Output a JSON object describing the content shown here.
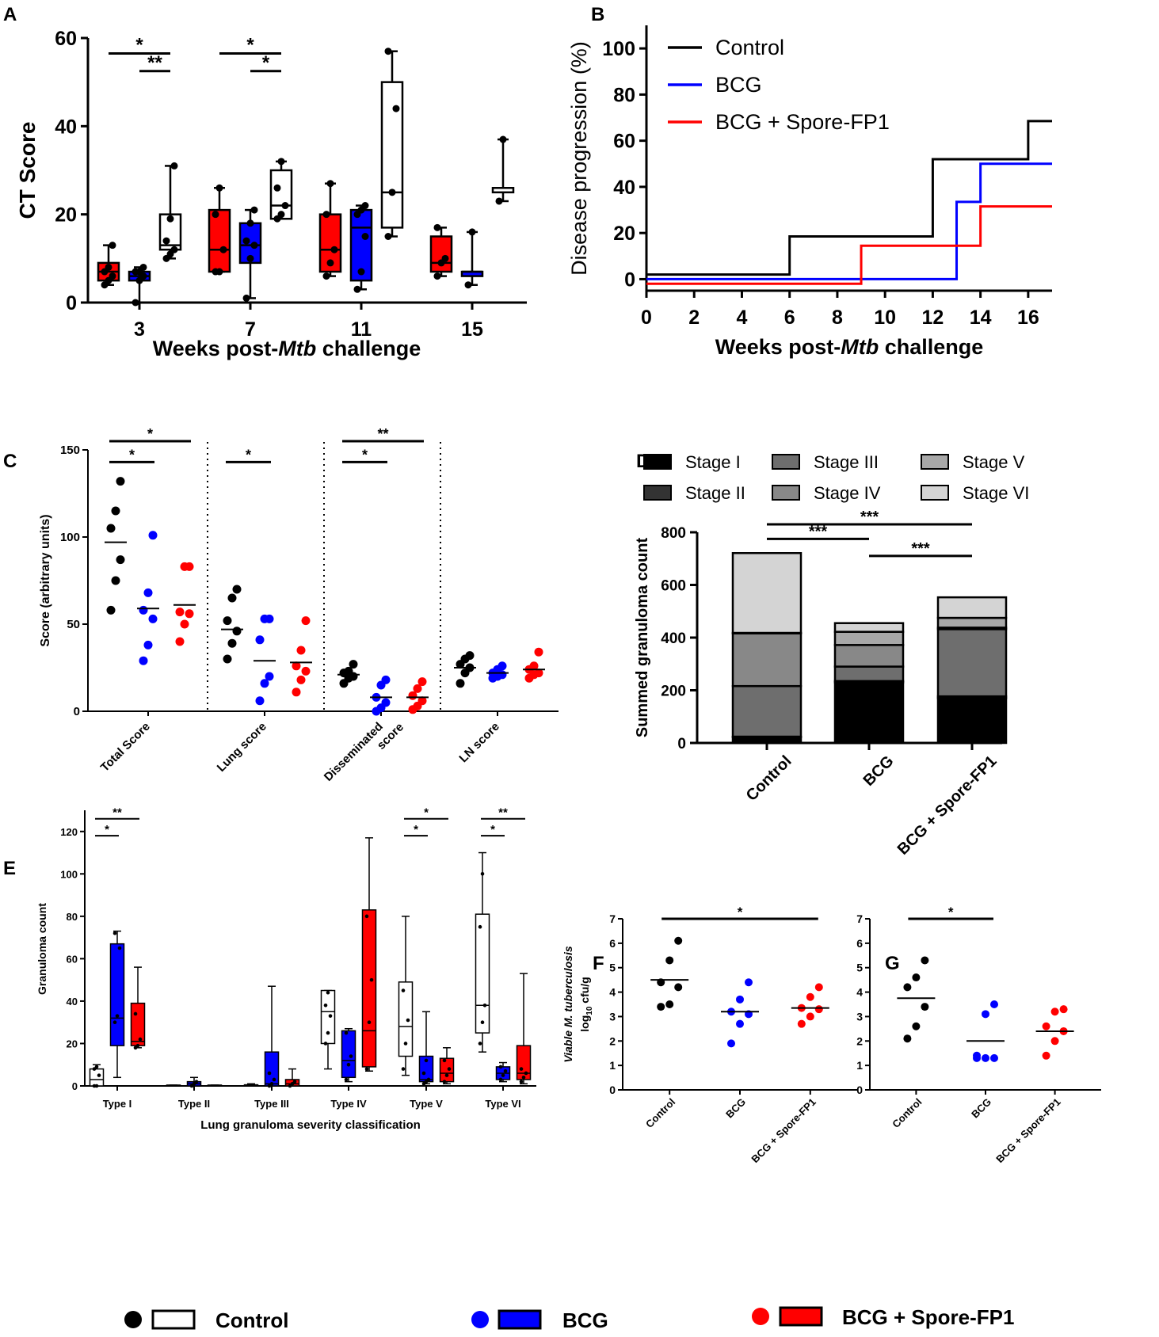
{
  "labels": {
    "A": "A",
    "B": "B",
    "C": "C",
    "D": "D",
    "E": "E",
    "F": "F",
    "G": "G"
  },
  "colors": {
    "control": "#000000",
    "bcg": "#0000ff",
    "spore": "#ff0000",
    "stage1": "#000000",
    "stage2": "#333333",
    "stage3": "#6e6e6e",
    "stage4": "#888888",
    "stage5": "#a8a8a8",
    "stage6": "#d4d4d4"
  },
  "legend": {
    "control": "Control",
    "bcg": "BCG",
    "spore": "BCG + Spore-FP1"
  },
  "chart_data": [
    {
      "panel": "A",
      "type": "box",
      "ylabel": "CT Score",
      "xlabel_pre": "Weeks post-",
      "xlabel_it": "Mtb",
      "xlabel_post": " challenge",
      "ylim": [
        0,
        60
      ],
      "yticks": [
        0,
        20,
        40,
        60
      ],
      "categories": [
        "3",
        "7",
        "11",
        "15"
      ],
      "boxes": [
        {
          "week": "3",
          "group": "spore",
          "min": 4,
          "q1": 5,
          "med": 7,
          "q3": 9,
          "max": 13,
          "pts": [
            4,
            5,
            6,
            7,
            8,
            13
          ]
        },
        {
          "week": "3",
          "group": "bcg",
          "min": 0,
          "q1": 5,
          "med": 6,
          "q3": 7,
          "max": 8,
          "pts": [
            0,
            5,
            6,
            7,
            7,
            8
          ]
        },
        {
          "week": "3",
          "group": "control",
          "min": 10,
          "q1": 12,
          "med": 13,
          "q3": 20,
          "max": 31,
          "pts": [
            10,
            11,
            12,
            14,
            19,
            31
          ]
        },
        {
          "week": "7",
          "group": "spore",
          "min": 7,
          "q1": 7,
          "med": 12,
          "q3": 21,
          "max": 26,
          "pts": [
            7,
            7,
            12,
            20,
            26
          ]
        },
        {
          "week": "7",
          "group": "bcg",
          "min": 1,
          "q1": 9,
          "med": 13,
          "q3": 18,
          "max": 21,
          "pts": [
            1,
            10,
            13,
            14,
            18,
            21
          ]
        },
        {
          "week": "7",
          "group": "control",
          "min": 19,
          "q1": 19,
          "med": 22,
          "q3": 30,
          "max": 32,
          "pts": [
            19,
            20,
            22,
            26,
            32
          ]
        },
        {
          "week": "11",
          "group": "spore",
          "min": 6,
          "q1": 7,
          "med": 12,
          "q3": 20,
          "max": 27,
          "pts": [
            6,
            9,
            12,
            20,
            27
          ]
        },
        {
          "week": "11",
          "group": "bcg",
          "min": 3,
          "q1": 5,
          "med": 17,
          "q3": 21,
          "max": 22,
          "pts": [
            3,
            7,
            15,
            20,
            21,
            22
          ]
        },
        {
          "week": "11",
          "group": "control",
          "min": 15,
          "q1": 17,
          "med": 25,
          "q3": 50,
          "max": 57,
          "pts": [
            15,
            25,
            44,
            57
          ]
        },
        {
          "week": "15",
          "group": "spore",
          "min": 6,
          "q1": 7,
          "med": 9,
          "q3": 15,
          "max": 17,
          "pts": [
            6,
            9,
            10,
            17
          ]
        },
        {
          "week": "15",
          "group": "bcg",
          "min": 4,
          "q1": 6,
          "med": 7,
          "q3": 7,
          "max": 16,
          "pts": [
            4,
            16
          ]
        },
        {
          "week": "15",
          "group": "control",
          "min": 23,
          "q1": 25,
          "med": 26,
          "q3": 26,
          "max": 37,
          "pts": [
            23,
            37
          ]
        }
      ],
      "sig": [
        {
          "label": "*",
          "from": "3-spore",
          "to": "3-control",
          "y": 56.5
        },
        {
          "label": "**",
          "from": "3-bcg",
          "to": "3-control",
          "y": 52.5
        },
        {
          "label": "*",
          "from": "7-spore",
          "to": "7-control",
          "y": 56.5
        },
        {
          "label": "*",
          "from": "7-bcg",
          "to": "7-control",
          "y": 52.5
        }
      ]
    },
    {
      "panel": "B",
      "type": "line",
      "ylabel": "Disease progression (%)",
      "xlabel_pre": "Weeks post-",
      "xlabel_it": "Mtb",
      "xlabel_post": " challenge",
      "xlim": [
        0,
        17
      ],
      "ylim": [
        -5,
        110
      ],
      "xticks": [
        0,
        2,
        4,
        6,
        8,
        10,
        12,
        14,
        16
      ],
      "yticks": [
        0,
        20,
        40,
        60,
        80,
        100
      ],
      "series": [
        {
          "name": "Control",
          "group": "control",
          "steps": [
            [
              0,
              2
            ],
            [
              6,
              2
            ],
            [
              6,
              18.5
            ],
            [
              12,
              18.5
            ],
            [
              12,
              52
            ],
            [
              16,
              52
            ],
            [
              16,
              68.5
            ],
            [
              17,
              68.5
            ]
          ]
        },
        {
          "name": "BCG",
          "group": "bcg",
          "steps": [
            [
              0,
              0
            ],
            [
              13,
              0
            ],
            [
              13,
              33.5
            ],
            [
              14,
              33.5
            ],
            [
              14,
              50
            ],
            [
              17,
              50
            ]
          ]
        },
        {
          "name": "BCG + Spore-FP1",
          "group": "spore",
          "steps": [
            [
              0,
              -2
            ],
            [
              9,
              -2
            ],
            [
              9,
              14.5
            ],
            [
              14,
              14.5
            ],
            [
              14,
              31.5
            ],
            [
              17,
              31.5
            ]
          ]
        }
      ]
    },
    {
      "panel": "C",
      "type": "scatter",
      "ylabel": "Score  (arbitrary units)",
      "ylim": [
        0,
        150
      ],
      "yticks": [
        0,
        50,
        100,
        150
      ],
      "categories": [
        "Total Score",
        "Lung score",
        "Disseminated score",
        "LN score"
      ],
      "cat_label_lines": [
        [
          "Total Score"
        ],
        [
          "Lung score"
        ],
        [
          "Disseminated",
          "score"
        ],
        [
          "LN score"
        ]
      ],
      "series": [
        {
          "group": "control",
          "points": [
            [
              58,
              75,
              87,
              105,
              115,
              132
            ],
            [
              30,
              39,
              46,
              52,
              65,
              70
            ],
            [
              16,
              19,
              20,
              22,
              23,
              27
            ],
            [
              16,
              22,
              25,
              27,
              30,
              32
            ]
          ],
          "means": [
            97,
            47,
            21,
            25
          ]
        },
        {
          "group": "bcg",
          "points": [
            [
              29,
              38,
              53,
              58,
              68,
              101
            ],
            [
              6,
              16,
              20,
              41,
              53,
              53
            ],
            [
              0,
              2,
              5,
              8,
              15,
              18
            ],
            [
              19,
              20,
              21,
              22,
              24,
              26
            ]
          ],
          "means": [
            59,
            29,
            8,
            22
          ]
        },
        {
          "group": "spore",
          "points": [
            [
              40,
              50,
              56,
              57,
              83,
              83
            ],
            [
              11,
              18,
              23,
              26,
              35,
              52
            ],
            [
              1,
              3,
              6,
              9,
              13,
              17
            ],
            [
              19,
              21,
              22,
              24,
              26,
              34
            ]
          ],
          "means": [
            61,
            28,
            8,
            24
          ]
        }
      ],
      "sig": [
        {
          "label": "*",
          "cat": 0,
          "from": 0,
          "to": 2,
          "y": 155
        },
        {
          "label": "*",
          "cat": 0,
          "from": 0,
          "to": 1,
          "y": 143
        },
        {
          "label": "*",
          "cat": 1,
          "from": 0,
          "to": 1,
          "y": 143
        },
        {
          "label": "**",
          "cat": 2,
          "from": 0,
          "to": 2,
          "y": 155
        },
        {
          "label": "*",
          "cat": 2,
          "from": 0,
          "to": 1,
          "y": 143
        }
      ]
    },
    {
      "panel": "D",
      "type": "stacked-bar",
      "ylabel": "Summed granuloma count",
      "ylim": [
        0,
        800
      ],
      "yticks": [
        0,
        200,
        400,
        600,
        800
      ],
      "categories": [
        "Control",
        "BCG",
        "BCG + Spore-FP1"
      ],
      "stages": [
        "Stage I",
        "Stage II",
        "Stage III",
        "Stage IV",
        "Stage V",
        "Stage VI"
      ],
      "stage_values": [
        [
          22,
          2,
          192,
          200,
          2,
          303
        ],
        [
          230,
          5,
          55,
          82,
          50,
          33
        ],
        [
          170,
          7,
          255,
          6,
          37,
          78
        ]
      ],
      "sig": [
        {
          "label": "***",
          "from": 0,
          "to": 2,
          "y": 830
        },
        {
          "label": "***",
          "from": 0,
          "to": 1,
          "y": 775
        },
        {
          "label": "***",
          "from": 1,
          "to": 2,
          "y": 710
        }
      ]
    },
    {
      "panel": "E",
      "type": "box",
      "ylabel": "Granuloma count",
      "xlabel": "Lung granuloma severity classification",
      "ylim": [
        0,
        130
      ],
      "yticks": [
        0,
        20,
        40,
        60,
        80,
        100,
        120
      ],
      "categories": [
        "Type I",
        "Type II",
        "Type III",
        "Type IV",
        "Type V",
        "Type VI"
      ],
      "boxes": [
        [
          {
            "group": "control",
            "min": 0,
            "q1": 0,
            "med": 3,
            "q3": 8,
            "max": 10,
            "pts": [
              0,
              0,
              5,
              8,
              9
            ]
          },
          {
            "group": "bcg",
            "min": 4,
            "q1": 19,
            "med": 32,
            "q3": 67,
            "max": 73,
            "pts": [
              30,
              33,
              65,
              72
            ]
          },
          {
            "group": "spore",
            "min": 18,
            "q1": 19,
            "med": 21,
            "q3": 39,
            "max": 56,
            "pts": [
              18,
              19,
              22,
              34
            ]
          }
        ],
        [
          {
            "group": "control",
            "min": 0,
            "q1": 0,
            "med": 0,
            "q3": 0.4,
            "max": 0.4,
            "pts": []
          },
          {
            "group": "bcg",
            "min": 0,
            "q1": 0,
            "med": 1,
            "q3": 2,
            "max": 4,
            "pts": [
              0,
              1,
              2
            ]
          },
          {
            "group": "spore",
            "min": 0,
            "q1": 0,
            "med": 0,
            "q3": 0.4,
            "max": 0.4,
            "pts": []
          }
        ],
        [
          {
            "group": "control",
            "min": 0,
            "q1": 0,
            "med": 0.5,
            "q3": 0.5,
            "max": 1,
            "pts": []
          },
          {
            "group": "bcg",
            "min": 0,
            "q1": 0,
            "med": 1,
            "q3": 16,
            "max": 47,
            "pts": [
              0,
              1,
              3,
              6
            ]
          },
          {
            "group": "spore",
            "min": 0,
            "q1": 0,
            "med": 1,
            "q3": 3,
            "max": 8,
            "pts": [
              0,
              1,
              2
            ]
          }
        ],
        [
          {
            "group": "control",
            "min": 8,
            "q1": 20,
            "med": 35,
            "q3": 45,
            "max": 45,
            "pts": [
              20,
              25,
              33,
              38,
              44
            ]
          },
          {
            "group": "bcg",
            "min": 2,
            "q1": 4,
            "med": 12,
            "q3": 26,
            "max": 27,
            "pts": [
              3,
              10,
              14,
              25
            ]
          },
          {
            "group": "spore",
            "min": 7,
            "q1": 9,
            "med": 26,
            "q3": 83,
            "max": 117,
            "pts": [
              8,
              30,
              50,
              80
            ]
          }
        ],
        [
          {
            "group": "control",
            "min": 5,
            "q1": 14,
            "med": 28,
            "q3": 49,
            "max": 80,
            "pts": [
              8,
              20,
              31,
              45
            ]
          },
          {
            "group": "bcg",
            "min": 1,
            "q1": 2,
            "med": 3,
            "q3": 14,
            "max": 35,
            "pts": [
              1,
              2,
              3,
              6,
              12
            ]
          },
          {
            "group": "spore",
            "min": 1,
            "q1": 2,
            "med": 6,
            "q3": 13,
            "max": 18,
            "pts": [
              2,
              5,
              8,
              12
            ]
          }
        ],
        [
          {
            "group": "control",
            "min": 16,
            "q1": 25,
            "med": 38,
            "q3": 81,
            "max": 110,
            "pts": [
              20,
              30,
              38,
              75,
              100
            ]
          },
          {
            "group": "bcg",
            "min": 2,
            "q1": 3,
            "med": 6,
            "q3": 9,
            "max": 11,
            "pts": [
              3,
              5,
              7,
              9
            ]
          },
          {
            "group": "spore",
            "min": 1,
            "q1": 3,
            "med": 6,
            "q3": 19,
            "max": 53,
            "pts": [
              2,
              4,
              6,
              8
            ]
          }
        ]
      ],
      "sig": [
        {
          "label": "**",
          "cat": 0,
          "from": 0,
          "to": 2,
          "y": 126
        },
        {
          "label": "*",
          "cat": 0,
          "from": 0,
          "to": 1,
          "y": 118
        },
        {
          "label": "*",
          "cat": 4,
          "from": 0,
          "to": 2,
          "y": 126
        },
        {
          "label": "*",
          "cat": 4,
          "from": 0,
          "to": 1,
          "y": 118
        },
        {
          "label": "**",
          "cat": 5,
          "from": 0,
          "to": 2,
          "y": 126
        },
        {
          "label": "*",
          "cat": 5,
          "from": 0,
          "to": 1,
          "y": 118
        }
      ]
    },
    {
      "panel": "F",
      "type": "scatter",
      "ylabel_it": "Viable M. tuberculosis",
      "ylabel2_pre": "log",
      "ylabel2_sub": "10",
      "ylabel2_post": " cfu/g",
      "ylim": [
        0,
        7
      ],
      "yticks": [
        0,
        1,
        2,
        3,
        4,
        5,
        6,
        7
      ],
      "categories": [
        "Control",
        "BCG",
        "BCG + Spore-FP1"
      ],
      "series": [
        {
          "group": "control",
          "points": [
            3.4,
            3.5,
            4.2,
            4.4,
            5.3,
            6.1
          ],
          "mean": 4.5
        },
        {
          "group": "bcg",
          "points": [
            1.9,
            2.7,
            3.1,
            3.2,
            3.7,
            4.4
          ],
          "mean": 3.2
        },
        {
          "group": "spore",
          "points": [
            2.7,
            3.0,
            3.3,
            3.35,
            3.8,
            4.2
          ],
          "mean": 3.35
        }
      ],
      "sig": [
        {
          "label": "*",
          "from": 0,
          "to": 2,
          "y": 7.0
        }
      ]
    },
    {
      "panel": "G",
      "type": "scatter",
      "ylim": [
        0,
        7
      ],
      "yticks": [
        0,
        1,
        2,
        3,
        4,
        5,
        6,
        7
      ],
      "categories": [
        "Control",
        "BCG",
        "BCG + Spore-FP1"
      ],
      "series": [
        {
          "group": "control",
          "points": [
            2.1,
            2.6,
            3.4,
            4.2,
            4.6,
            5.3
          ],
          "mean": 3.75
        },
        {
          "group": "bcg",
          "points": [
            1.3,
            1.3,
            1.3,
            1.4,
            3.1,
            3.5
          ],
          "mean": 2.0
        },
        {
          "group": "spore",
          "points": [
            1.4,
            2.0,
            2.4,
            2.6,
            3.2,
            3.3
          ],
          "mean": 2.4
        }
      ],
      "sig": [
        {
          "label": "*",
          "from": 0,
          "to": 1,
          "y": 7.0
        }
      ]
    }
  ]
}
